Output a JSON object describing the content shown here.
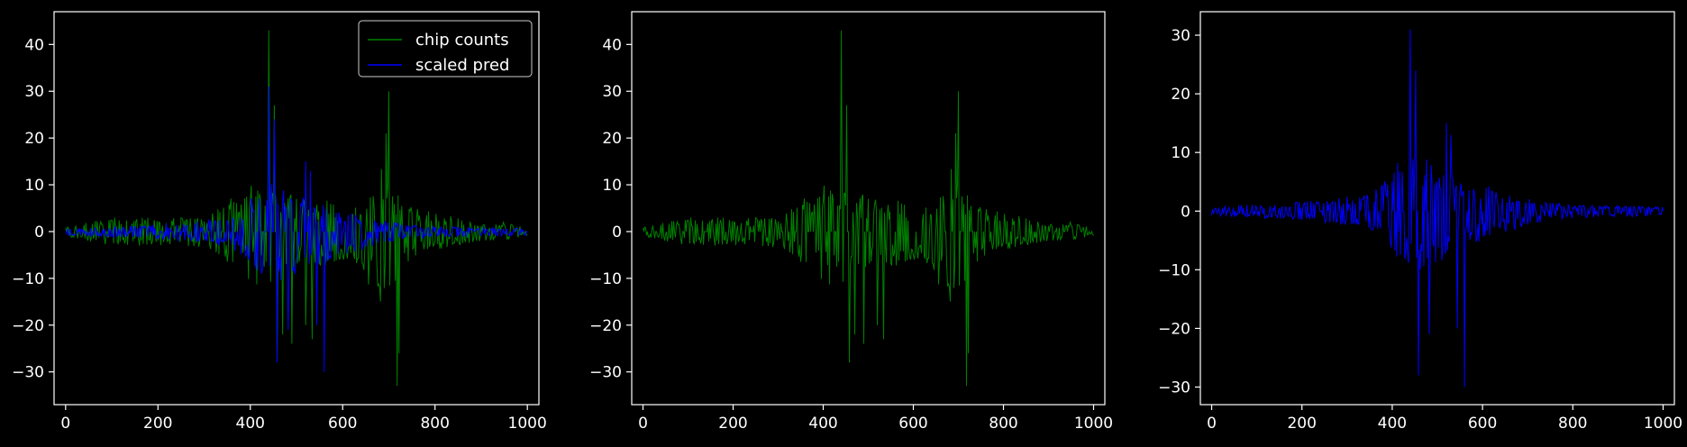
{
  "chart_data": [
    {
      "type": "line",
      "xlim": [
        -25,
        1025
      ],
      "ylim": [
        -37,
        47
      ],
      "xticks": [
        0,
        200,
        400,
        600,
        800,
        1000
      ],
      "yticks": [
        -30,
        -20,
        -10,
        0,
        10,
        20,
        30,
        40
      ],
      "xtick_labels": [
        "0",
        "200",
        "400",
        "600",
        "800",
        "1000"
      ],
      "ytick_labels": [
        "−30",
        "−20",
        "−10",
        "0",
        "10",
        "20",
        "30",
        "40"
      ],
      "legend": {
        "position": "top-right",
        "entries": [
          "chip counts",
          "scaled pred"
        ]
      },
      "series": [
        {
          "name": "chip counts",
          "color": "#008000",
          "envelope_x": [
            0,
            50,
            100,
            150,
            200,
            250,
            300,
            350,
            380,
            400,
            420,
            440,
            460,
            480,
            500,
            520,
            540,
            560,
            580,
            600,
            620,
            640,
            660,
            680,
            690,
            700,
            710,
            720,
            740,
            760,
            800,
            850,
            900,
            950,
            1000
          ],
          "envelope_max": [
            1,
            2,
            3,
            3,
            3,
            3,
            4,
            7,
            8,
            10,
            12,
            10,
            9,
            8,
            8,
            7,
            6,
            7,
            6,
            6,
            5,
            8,
            10,
            14,
            18,
            12,
            10,
            8,
            6,
            5,
            4,
            3,
            2,
            2,
            1
          ],
          "envelope_min": [
            -1,
            -2,
            -3,
            -3,
            -3,
            -3,
            -4,
            -7,
            -9,
            -11,
            -13,
            -12,
            -10,
            -9,
            -9,
            -8,
            -7,
            -8,
            -7,
            -7,
            -6,
            -9,
            -12,
            -16,
            -20,
            -14,
            -12,
            -10,
            -7,
            -5,
            -4,
            -3,
            -2,
            -2,
            -1
          ],
          "spikes": [
            {
              "x": 440,
              "y": 43
            },
            {
              "x": 452,
              "y": 27
            },
            {
              "x": 458,
              "y": -28
            },
            {
              "x": 470,
              "y": -22
            },
            {
              "x": 490,
              "y": -24
            },
            {
              "x": 520,
              "y": -20
            },
            {
              "x": 535,
              "y": -23
            },
            {
              "x": 700,
              "y": 30
            },
            {
              "x": 695,
              "y": 21
            },
            {
              "x": 718,
              "y": -33
            },
            {
              "x": 722,
              "y": -26
            }
          ]
        },
        {
          "name": "scaled pred",
          "color": "#0000ff",
          "envelope_x": [
            0,
            50,
            100,
            150,
            200,
            250,
            300,
            350,
            380,
            400,
            420,
            440,
            460,
            480,
            500,
            520,
            540,
            560,
            580,
            600,
            620,
            640,
            660,
            680,
            700,
            720,
            750,
            800,
            850,
            900,
            950,
            1000
          ],
          "envelope_max": [
            0.8,
            1.0,
            1.2,
            1.3,
            1.6,
            2.0,
            2.5,
            3.5,
            5,
            7,
            9,
            10,
            11,
            9,
            8,
            7,
            6,
            6,
            5,
            4.5,
            4,
            3.5,
            3,
            2.5,
            2.2,
            1.8,
            1.4,
            1.2,
            1.0,
            0.9,
            0.8,
            0.7
          ],
          "envelope_min": [
            -0.8,
            -1.0,
            -1.2,
            -1.3,
            -1.6,
            -2.0,
            -2.5,
            -3.5,
            -5,
            -7,
            -9,
            -11,
            -12,
            -10,
            -9,
            -8,
            -7,
            -7,
            -6,
            -5,
            -4.5,
            -4,
            -3.5,
            -3,
            -2.5,
            -2,
            -1.6,
            -1.3,
            -1.1,
            -1.0,
            -0.9,
            -0.8
          ],
          "spikes": [
            {
              "x": 440,
              "y": 31
            },
            {
              "x": 452,
              "y": 24
            },
            {
              "x": 458,
              "y": -28
            },
            {
              "x": 482,
              "y": -21
            },
            {
              "x": 520,
              "y": 15
            },
            {
              "x": 530,
              "y": 13
            },
            {
              "x": 545,
              "y": -20
            },
            {
              "x": 560,
              "y": -30
            }
          ]
        }
      ]
    },
    {
      "type": "line",
      "xlim": [
        -25,
        1025
      ],
      "ylim": [
        -37,
        47
      ],
      "xticks": [
        0,
        200,
        400,
        600,
        800,
        1000
      ],
      "yticks": [
        -30,
        -20,
        -10,
        0,
        10,
        20,
        30,
        40
      ],
      "xtick_labels": [
        "0",
        "200",
        "400",
        "600",
        "800",
        "1000"
      ],
      "ytick_labels": [
        "−30",
        "−20",
        "−10",
        "0",
        "10",
        "20",
        "30",
        "40"
      ],
      "series": [
        {
          "color": "#008000",
          "envelope_x": [
            0,
            50,
            100,
            150,
            200,
            250,
            300,
            350,
            380,
            400,
            420,
            440,
            460,
            480,
            500,
            520,
            540,
            560,
            580,
            600,
            620,
            640,
            660,
            680,
            690,
            700,
            710,
            720,
            740,
            760,
            800,
            850,
            900,
            950,
            1000
          ],
          "envelope_max": [
            1,
            2,
            3,
            3,
            3,
            3,
            4,
            7,
            8,
            10,
            12,
            10,
            9,
            8,
            8,
            7,
            6,
            7,
            6,
            6,
            5,
            8,
            10,
            14,
            18,
            12,
            10,
            8,
            6,
            5,
            4,
            3,
            2,
            2,
            1
          ],
          "envelope_min": [
            -1,
            -2,
            -3,
            -3,
            -3,
            -3,
            -4,
            -7,
            -9,
            -11,
            -13,
            -12,
            -10,
            -9,
            -9,
            -8,
            -7,
            -8,
            -7,
            -7,
            -6,
            -9,
            -12,
            -16,
            -20,
            -14,
            -12,
            -10,
            -7,
            -5,
            -4,
            -3,
            -2,
            -2,
            -1
          ],
          "spikes": [
            {
              "x": 440,
              "y": 43
            },
            {
              "x": 452,
              "y": 27
            },
            {
              "x": 458,
              "y": -28
            },
            {
              "x": 470,
              "y": -22
            },
            {
              "x": 490,
              "y": -24
            },
            {
              "x": 520,
              "y": -20
            },
            {
              "x": 535,
              "y": -23
            },
            {
              "x": 700,
              "y": 30
            },
            {
              "x": 695,
              "y": 21
            },
            {
              "x": 718,
              "y": -33
            },
            {
              "x": 722,
              "y": -26
            }
          ]
        }
      ]
    },
    {
      "type": "line",
      "xlim": [
        -25,
        1025
      ],
      "ylim": [
        -33,
        34
      ],
      "xticks": [
        0,
        200,
        400,
        600,
        800,
        1000
      ],
      "yticks": [
        -30,
        -20,
        -10,
        0,
        10,
        20,
        30
      ],
      "xtick_labels": [
        "0",
        "200",
        "400",
        "600",
        "800",
        "1000"
      ],
      "ytick_labels": [
        "−30",
        "−20",
        "−10",
        "0",
        "10",
        "20",
        "30"
      ],
      "series": [
        {
          "color": "#0000ff",
          "envelope_x": [
            0,
            50,
            100,
            150,
            200,
            250,
            300,
            350,
            380,
            400,
            420,
            440,
            460,
            480,
            500,
            520,
            540,
            560,
            580,
            600,
            620,
            640,
            660,
            680,
            700,
            720,
            750,
            800,
            850,
            900,
            950,
            1000
          ],
          "envelope_max": [
            0.8,
            1.0,
            1.2,
            1.3,
            1.6,
            2.0,
            2.5,
            3.5,
            5,
            7,
            9,
            10,
            11,
            9,
            8,
            7,
            6,
            6,
            5,
            4.5,
            4,
            3.5,
            3,
            2.5,
            2.2,
            1.8,
            1.4,
            1.2,
            1.0,
            0.9,
            0.8,
            0.7
          ],
          "envelope_min": [
            -0.8,
            -1.0,
            -1.2,
            -1.3,
            -1.6,
            -2.0,
            -2.5,
            -3.5,
            -5,
            -7,
            -9,
            -11,
            -12,
            -10,
            -9,
            -8,
            -7,
            -7,
            -6,
            -5,
            -4.5,
            -4,
            -3.5,
            -3,
            -2.5,
            -2,
            -1.6,
            -1.3,
            -1.1,
            -1.0,
            -0.9,
            -0.8
          ],
          "spikes": [
            {
              "x": 440,
              "y": 31
            },
            {
              "x": 452,
              "y": 24
            },
            {
              "x": 458,
              "y": -28
            },
            {
              "x": 482,
              "y": -21
            },
            {
              "x": 520,
              "y": 15
            },
            {
              "x": 530,
              "y": 13
            },
            {
              "x": 545,
              "y": -20
            },
            {
              "x": 560,
              "y": -30
            }
          ]
        }
      ]
    }
  ]
}
